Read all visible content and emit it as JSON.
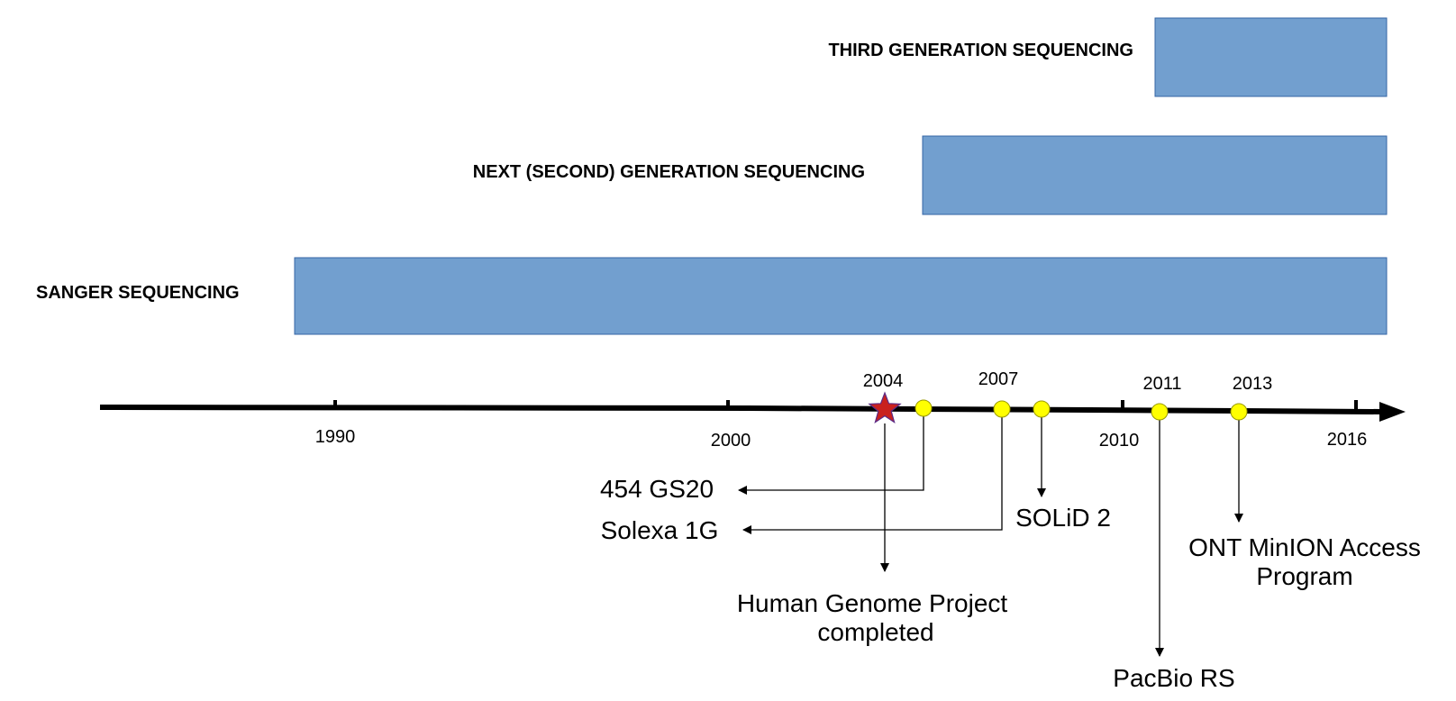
{
  "generations": [
    {
      "id": "third",
      "label": "THIRD GENERATION SEQUENCING"
    },
    {
      "id": "next",
      "label": "NEXT (SECOND) GENERATION SEQUENCING"
    },
    {
      "id": "sanger",
      "label": "SANGER SEQUENCING"
    }
  ],
  "axis": {
    "years": [
      "1990",
      "2000",
      "2010",
      "2016"
    ],
    "event_years": [
      "2004",
      "2007",
      "2011",
      "2013"
    ]
  },
  "events": {
    "hgp_line1": "Human Genome Project",
    "hgp_line2": "completed",
    "gs20": "454 GS20",
    "solexa": "Solexa 1G",
    "solid": "SOLiD 2",
    "pacbio": "PacBio RS",
    "ont_line1": "ONT MinION Access",
    "ont_line2": "Program"
  },
  "colors": {
    "bar_fill": "#729fcf",
    "bar_border": "#3465a4",
    "event_dot": "#ffff00",
    "milestone_star": "#c9211e"
  },
  "icons": {
    "milestone": "star-icon",
    "event": "yellow-circle-icon"
  }
}
